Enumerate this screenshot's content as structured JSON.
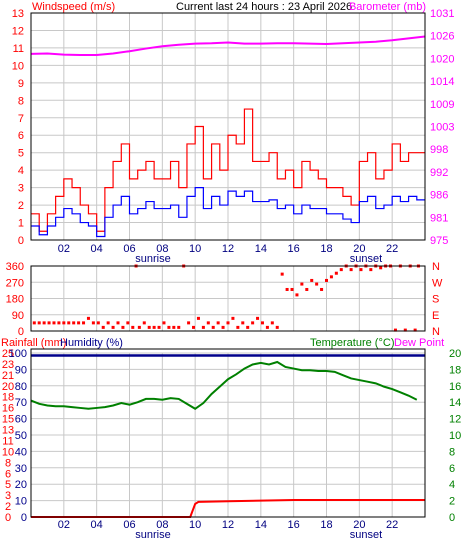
{
  "colors": {
    "wind": "#ff0000",
    "gust_series": "#ff0000",
    "avg_series": "#0000ff",
    "barometer": "#ff00ff",
    "direction": "#ff0000",
    "rainfall": "#ff0000",
    "humidity": "#00008b",
    "temperature": "#008000",
    "dewpoint": "#ff00ff",
    "grid": "#c8c8c8",
    "frame": "#000000"
  },
  "chart_data": [
    {
      "type": "line",
      "title": "Current last 24 hours : 23 April 2026",
      "left_axis_title": "Windspeed (m/s)",
      "right_axis_title": "Barometer (mb)",
      "x_tick_labels": [
        "02",
        "04",
        "06",
        "08",
        "10",
        "12",
        "14",
        "16",
        "18",
        "20",
        "22"
      ],
      "x_markers": [
        "sunrise",
        "sunset"
      ],
      "xlim_hours": [
        0,
        24
      ],
      "ylim_left": [
        0,
        13
      ],
      "left_ticks": [
        "0",
        "1",
        "2",
        "3",
        "4",
        "5",
        "6",
        "7",
        "8",
        "9",
        "10",
        "11",
        "12",
        "13"
      ],
      "right_ticks": [
        "975",
        "981",
        "986",
        "992",
        "998",
        "1003",
        "1009",
        "1014",
        "1020",
        "1026",
        "1031"
      ],
      "grid": true,
      "series": [
        {
          "key": "barometer",
          "x": [
            0,
            1,
            2,
            3,
            4,
            5,
            6,
            7,
            8,
            9,
            10,
            11,
            12,
            13,
            14,
            15,
            16,
            17,
            18,
            19,
            20,
            21,
            22,
            23,
            24
          ],
          "y": [
            1021.2,
            1021.3,
            1021.0,
            1020.9,
            1020.9,
            1021.3,
            1021.9,
            1022.6,
            1023.2,
            1023.6,
            1023.9,
            1024.0,
            1024.2,
            1023.9,
            1023.9,
            1024.0,
            1024.0,
            1023.9,
            1023.8,
            1024.0,
            1024.2,
            1024.4,
            1024.8,
            1025.3,
            1025.8
          ]
        },
        {
          "key": "gust",
          "x": [
            0,
            0.5,
            1,
            1.5,
            2,
            2.5,
            3,
            3.5,
            4,
            4.5,
            5,
            5.5,
            6,
            6.5,
            7,
            7.5,
            8,
            8.5,
            9,
            9.5,
            10,
            10.5,
            11,
            11.5,
            12,
            12.5,
            13,
            13.5,
            14,
            14.5,
            15,
            15.5,
            16,
            16.5,
            17,
            17.5,
            18,
            18.5,
            19,
            19.5,
            20,
            20.5,
            21,
            21.5,
            22,
            22.5,
            23,
            23.5
          ],
          "y": [
            1.5,
            0.5,
            1.5,
            2.5,
            3.5,
            3.0,
            2.0,
            1.5,
            0.5,
            3.0,
            4.5,
            5.5,
            3.5,
            4.0,
            4.5,
            3.5,
            3.5,
            4.5,
            3.0,
            5.5,
            6.5,
            3.5,
            5.5,
            4.0,
            6.0,
            5.5,
            7.5,
            4.5,
            4.5,
            5.0,
            3.5,
            4.0,
            3.0,
            4.5,
            4.0,
            3.5,
            3.0,
            3.0,
            2.5,
            2.0,
            4.5,
            5.0,
            3.5,
            4.0,
            5.5,
            4.5,
            5.0,
            5.0
          ]
        },
        {
          "key": "average",
          "x": [
            0,
            0.5,
            1,
            1.5,
            2,
            2.5,
            3,
            3.5,
            4,
            4.5,
            5,
            5.5,
            6,
            6.5,
            7,
            7.5,
            8,
            8.5,
            9,
            9.5,
            10,
            10.5,
            11,
            11.5,
            12,
            12.5,
            13,
            13.5,
            14,
            14.5,
            15,
            15.5,
            16,
            16.5,
            17,
            17.5,
            18,
            18.5,
            19,
            19.5,
            20,
            20.5,
            21,
            21.5,
            22,
            22.5,
            23,
            23.5
          ],
          "y": [
            0.8,
            0.3,
            0.8,
            1.3,
            1.8,
            1.5,
            1.0,
            0.8,
            0.2,
            1.3,
            2.0,
            2.5,
            1.5,
            1.8,
            2.2,
            1.8,
            1.8,
            2.0,
            1.3,
            2.5,
            3.0,
            1.8,
            2.5,
            2.0,
            2.8,
            2.5,
            2.8,
            2.2,
            2.2,
            2.3,
            1.8,
            2.0,
            1.5,
            2.0,
            1.8,
            1.8,
            1.5,
            1.5,
            1.2,
            1.0,
            2.2,
            2.5,
            1.8,
            2.0,
            2.5,
            2.2,
            2.5,
            2.3
          ]
        }
      ]
    },
    {
      "type": "scatter",
      "ylim": [
        0,
        360
      ],
      "left_ticks": [
        "0",
        "90",
        "180",
        "270",
        "360"
      ],
      "right_labels": [
        "N",
        "W",
        "S",
        "E",
        "N"
      ],
      "xlim_hours": [
        0,
        24
      ],
      "points_deg": [
        [
          0.2,
          45
        ],
        [
          0.5,
          45
        ],
        [
          0.8,
          45
        ],
        [
          1.1,
          45
        ],
        [
          1.4,
          45
        ],
        [
          1.7,
          45
        ],
        [
          2.0,
          45
        ],
        [
          2.3,
          45
        ],
        [
          2.6,
          45
        ],
        [
          2.9,
          45
        ],
        [
          3.2,
          45
        ],
        [
          3.5,
          70
        ],
        [
          3.8,
          45
        ],
        [
          4.1,
          45
        ],
        [
          4.4,
          20
        ],
        [
          4.7,
          45
        ],
        [
          5.0,
          20
        ],
        [
          5.3,
          45
        ],
        [
          5.6,
          20
        ],
        [
          5.9,
          45
        ],
        [
          6.2,
          20
        ],
        [
          6.4,
          360
        ],
        [
          6.6,
          20
        ],
        [
          6.9,
          45
        ],
        [
          7.2,
          20
        ],
        [
          7.5,
          20
        ],
        [
          7.8,
          20
        ],
        [
          8.1,
          45
        ],
        [
          8.4,
          20
        ],
        [
          8.7,
          20
        ],
        [
          9.0,
          20
        ],
        [
          9.3,
          360
        ],
        [
          9.6,
          45
        ],
        [
          9.9,
          20
        ],
        [
          10.2,
          70
        ],
        [
          10.5,
          20
        ],
        [
          10.8,
          45
        ],
        [
          11.1,
          20
        ],
        [
          11.4,
          45
        ],
        [
          11.7,
          20
        ],
        [
          12.0,
          45
        ],
        [
          12.3,
          70
        ],
        [
          12.6,
          20
        ],
        [
          12.9,
          45
        ],
        [
          13.2,
          20
        ],
        [
          13.5,
          45
        ],
        [
          13.8,
          70
        ],
        [
          14.1,
          45
        ],
        [
          14.4,
          20
        ],
        [
          14.7,
          45
        ],
        [
          15.0,
          20
        ],
        [
          15.3,
          315
        ],
        [
          15.6,
          230
        ],
        [
          15.9,
          230
        ],
        [
          16.2,
          200
        ],
        [
          16.5,
          260
        ],
        [
          16.8,
          230
        ],
        [
          17.1,
          280
        ],
        [
          17.4,
          260
        ],
        [
          17.7,
          230
        ],
        [
          18.0,
          280
        ],
        [
          18.3,
          300
        ],
        [
          18.6,
          320
        ],
        [
          18.9,
          340
        ],
        [
          19.2,
          360
        ],
        [
          19.5,
          340
        ],
        [
          19.8,
          360
        ],
        [
          20.1,
          340
        ],
        [
          20.4,
          360
        ],
        [
          20.7,
          340
        ],
        [
          21.0,
          360
        ],
        [
          21.3,
          350
        ],
        [
          21.6,
          360
        ],
        [
          21.9,
          360
        ],
        [
          22.2,
          5
        ],
        [
          22.5,
          360
        ],
        [
          22.8,
          5
        ],
        [
          23.1,
          360
        ],
        [
          23.4,
          5
        ],
        [
          23.6,
          360
        ]
      ]
    },
    {
      "type": "line",
      "left_axis_title": "Rainfall (mm)",
      "left_axis_title_2": "Humidity (%)",
      "right_axis_title": "Temperature (°C)",
      "right_axis_title_2": "Dew Point",
      "x_tick_labels": [
        "02",
        "04",
        "06",
        "08",
        "10",
        "12",
        "14",
        "16",
        "18",
        "20",
        "22"
      ],
      "x_markers": [
        "sunrise",
        "sunset"
      ],
      "xlim_hours": [
        0,
        24
      ],
      "ylim_left": [
        0,
        100
      ],
      "rain_ticks": [
        "0",
        "2",
        "3",
        "5",
        "6",
        "8",
        "10",
        "11",
        "13",
        "15",
        "16",
        "18",
        "20",
        "21",
        "23",
        "25"
      ],
      "humidity_ticks": [
        "0",
        "10",
        "20",
        "30",
        "40",
        "50",
        "60",
        "70",
        "80",
        "90",
        "100"
      ],
      "temperature_ticks": [
        "0",
        "2",
        "4",
        "6",
        "8",
        "10",
        "12",
        "14",
        "16",
        "18",
        "20"
      ],
      "grid": true,
      "series": [
        {
          "key": "temperature",
          "x": [
            0,
            0.5,
            1,
            1.5,
            2,
            2.5,
            3,
            3.5,
            4,
            4.5,
            5,
            5.5,
            6,
            6.5,
            7,
            7.5,
            8,
            8.5,
            9,
            9.5,
            10,
            10.5,
            11,
            11.5,
            12,
            12.5,
            13,
            13.5,
            14,
            14.5,
            15,
            15.5,
            16,
            16.5,
            17,
            17.5,
            18,
            18.5,
            19,
            19.5,
            20,
            20.5,
            21,
            21.5,
            22,
            22.5,
            23,
            23.5
          ],
          "y": [
            14.2,
            13.8,
            13.6,
            13.5,
            13.5,
            13.4,
            13.3,
            13.2,
            13.3,
            13.4,
            13.6,
            13.9,
            13.7,
            14.0,
            14.4,
            14.4,
            14.3,
            14.5,
            14.4,
            13.8,
            13.2,
            13.9,
            15.0,
            15.9,
            16.8,
            17.4,
            18.1,
            18.6,
            18.8,
            18.6,
            18.9,
            18.3,
            18.1,
            17.9,
            17.9,
            17.8,
            17.8,
            17.7,
            17.3,
            16.9,
            16.7,
            16.5,
            16.3,
            15.9,
            15.6,
            15.2,
            14.8,
            14.3
          ]
        },
        {
          "key": "rainfall",
          "x": [
            0,
            9.7,
            10.0,
            10.2,
            12,
            14,
            16,
            18,
            20,
            22,
            24
          ],
          "y": [
            0,
            0,
            2.0,
            2.3,
            2.4,
            2.5,
            2.6,
            2.6,
            2.6,
            2.6,
            2.6
          ]
        },
        {
          "key": "humidity",
          "x": [
            0,
            24
          ],
          "y": [
            98.5,
            98.5
          ]
        }
      ]
    }
  ],
  "dewpoint_label": "Dew Point"
}
